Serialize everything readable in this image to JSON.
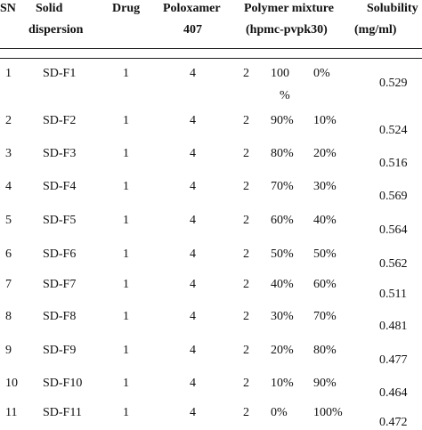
{
  "table": {
    "headers": {
      "sn": "SN",
      "solid_line1": "Solid",
      "solid_line2": "dispersion",
      "drug": "Drug",
      "poloxamer_line1": "Poloxamer",
      "poloxamer_line2": "407",
      "polymer_line1": "Polymer mixture",
      "polymer_line2": "(hpmc-pvpk30)",
      "solubility_line1": "Solubility",
      "solubility_line2": "(mg/ml)"
    },
    "rows": [
      {
        "sn": "1",
        "sd": "SD-F1",
        "drug": "1",
        "pol": "4",
        "mix": "2",
        "hpmc_a": "100",
        "hpmc_b": "%",
        "pvp": "0%",
        "sol": "0.529"
      },
      {
        "sn": "2",
        "sd": "SD-F2",
        "drug": "1",
        "pol": "4",
        "mix": "2",
        "hpmc_a": "90%",
        "hpmc_b": "",
        "pvp": "10%",
        "sol": "0.524"
      },
      {
        "sn": "3",
        "sd": "SD-F3",
        "drug": "1",
        "pol": "4",
        "mix": "2",
        "hpmc_a": "80%",
        "hpmc_b": "",
        "pvp": "20%",
        "sol": "0.516"
      },
      {
        "sn": "4",
        "sd": "SD-F4",
        "drug": "1",
        "pol": "4",
        "mix": "2",
        "hpmc_a": "70%",
        "hpmc_b": "",
        "pvp": "30%",
        "sol": "0.569"
      },
      {
        "sn": "5",
        "sd": "SD-F5",
        "drug": "1",
        "pol": "4",
        "mix": "2",
        "hpmc_a": "60%",
        "hpmc_b": "",
        "pvp": "40%",
        "sol": "0.564"
      },
      {
        "sn": "6",
        "sd": "SD-F6",
        "drug": "1",
        "pol": "4",
        "mix": "2",
        "hpmc_a": "50%",
        "hpmc_b": "",
        "pvp": "50%",
        "sol": "0.562"
      },
      {
        "sn": "7",
        "sd": "SD-F7",
        "drug": "1",
        "pol": "4",
        "mix": "2",
        "hpmc_a": "40%",
        "hpmc_b": "",
        "pvp": "60%",
        "sol": "0.511"
      },
      {
        "sn": "8",
        "sd": "SD-F8",
        "drug": "1",
        "pol": "4",
        "mix": "2",
        "hpmc_a": "30%",
        "hpmc_b": "",
        "pvp": "70%",
        "sol": "0.481"
      },
      {
        "sn": "9",
        "sd": "SD-F9",
        "drug": "1",
        "pol": "4",
        "mix": "2",
        "hpmc_a": "20%",
        "hpmc_b": "",
        "pvp": "80%",
        "sol": "0.477"
      },
      {
        "sn": "10",
        "sd": "SD-F10",
        "drug": "1",
        "pol": "4",
        "mix": "2",
        "hpmc_a": "10%",
        "hpmc_b": "",
        "pvp": "90%",
        "sol": "0.464"
      },
      {
        "sn": "11",
        "sd": "SD-F11",
        "drug": "1",
        "pol": "4",
        "mix": "2",
        "hpmc_a": "0%",
        "hpmc_b": "",
        "pvp": "100%",
        "sol": "0.472"
      }
    ]
  }
}
